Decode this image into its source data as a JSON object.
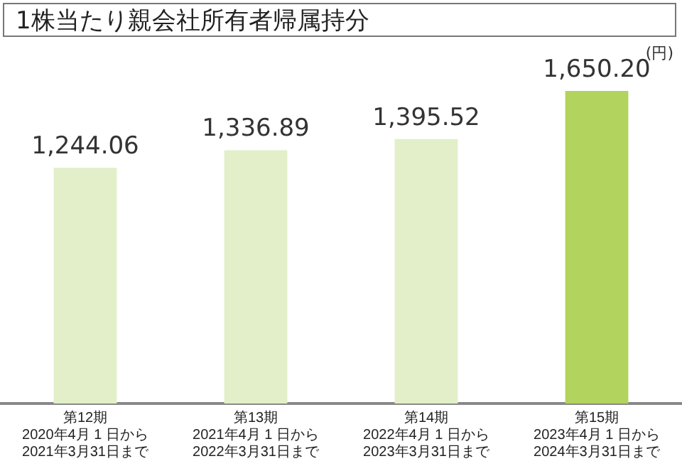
{
  "chart_data": {
    "type": "bar",
    "title": "1株当たり親会社所有者帰属持分",
    "ylabel": "(円)",
    "categories": [
      "第12期\n2020年4月 1 日から\n2021年3月31日まで",
      "第13期\n2021年4月 1 日から\n2022年3月31日まで",
      "第14期\n2022年4月 1 日から\n2023年3月31日まで",
      "第15期\n2023年4月 1 日から\n2024年3月31日まで"
    ],
    "values": [
      1244.06,
      1336.89,
      1395.52,
      1650.2
    ],
    "colors": [
      "#e2efc9",
      "#e2efc9",
      "#e2efc9",
      "#b2d35e"
    ],
    "value_labels": [
      "1,244.06",
      "1,336.89",
      "1,395.52",
      "1,650.20"
    ],
    "grid": false,
    "legend": false
  }
}
